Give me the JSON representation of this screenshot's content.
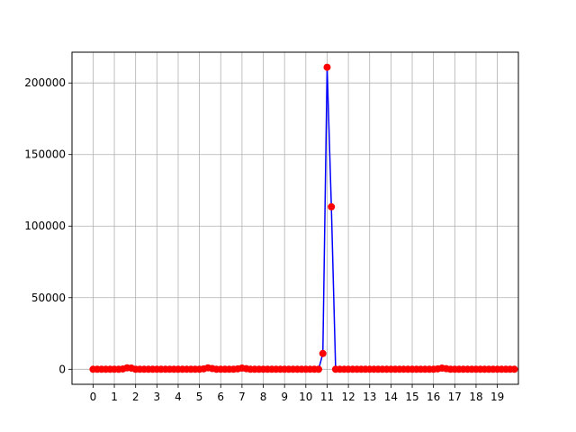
{
  "chart_data": {
    "type": "line",
    "title": "",
    "xlabel": "",
    "ylabel": "",
    "xlim": [
      -0.99,
      19.99
    ],
    "ylim": [
      -10500,
      221500
    ],
    "grid": true,
    "xticks": [
      0,
      1,
      2,
      3,
      4,
      5,
      6,
      7,
      8,
      9,
      10,
      11,
      12,
      13,
      14,
      15,
      16,
      17,
      18,
      19
    ],
    "yticks": [
      0,
      50000,
      100000,
      150000,
      200000
    ],
    "ytick_labels": [
      "0",
      "50000",
      "100000",
      "150000",
      "200000"
    ],
    "colors": {
      "line": "#0000ff",
      "marker": "#ff0000",
      "grid": "#b0b0b0",
      "frame": "#000000"
    },
    "series": [
      {
        "x": [
          0,
          0.2,
          0.4,
          0.6,
          0.8,
          1,
          1.2,
          1.4,
          1.6,
          1.8,
          2,
          2.2,
          2.4,
          2.6,
          2.8,
          3,
          3.2,
          3.4,
          3.6,
          3.8,
          4,
          4.2,
          4.4,
          4.6,
          4.8,
          5,
          5.2,
          5.4,
          5.6,
          5.8,
          6,
          6.2,
          6.4,
          6.6,
          6.8,
          7,
          7.2,
          7.4,
          7.6,
          7.8,
          8,
          8.2,
          8.4,
          8.6,
          8.8,
          9,
          9.2,
          9.4,
          9.6,
          9.8,
          10,
          10.2,
          10.4,
          10.6,
          10.8,
          11,
          11.2,
          11.4,
          11.6,
          11.8,
          12,
          12.2,
          12.4,
          12.6,
          12.8,
          13,
          13.2,
          13.4,
          13.6,
          13.8,
          14,
          14.2,
          14.4,
          14.6,
          14.8,
          15,
          15.2,
          15.4,
          15.6,
          15.8,
          16,
          16.2,
          16.4,
          16.6,
          16.8,
          17,
          17.2,
          17.4,
          17.6,
          17.8,
          18,
          18.2,
          18.4,
          18.6,
          18.8,
          19,
          19.2,
          19.4,
          19.6,
          19.8
        ],
        "y": [
          0,
          0,
          0,
          0,
          0,
          0,
          0,
          200,
          1000,
          800,
          0,
          0,
          0,
          0,
          0,
          0,
          0,
          0,
          0,
          0,
          0,
          0,
          0,
          0,
          0,
          0,
          300,
          1000,
          500,
          0,
          0,
          0,
          0,
          0,
          300,
          800,
          400,
          0,
          0,
          0,
          0,
          0,
          0,
          0,
          0,
          0,
          0,
          0,
          0,
          0,
          0,
          0,
          0,
          0,
          11000,
          211000,
          113500,
          0,
          0,
          0,
          0,
          0,
          0,
          0,
          0,
          0,
          0,
          0,
          0,
          0,
          0,
          0,
          0,
          0,
          0,
          0,
          0,
          0,
          0,
          0,
          0,
          300,
          800,
          400,
          0,
          0,
          0,
          0,
          0,
          0,
          0,
          0,
          0,
          0,
          0,
          0,
          0,
          0,
          0,
          0
        ]
      }
    ]
  }
}
